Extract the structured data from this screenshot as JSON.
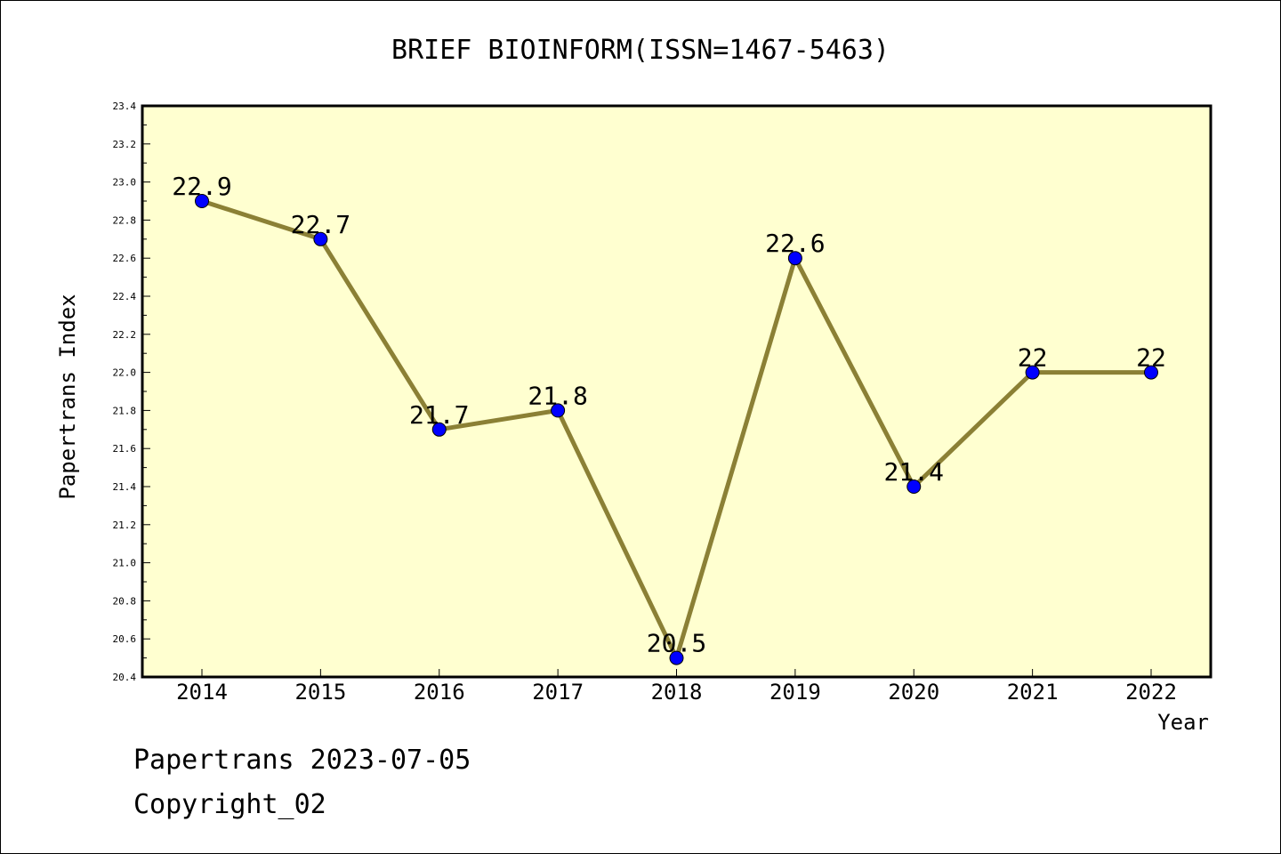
{
  "chart_data": {
    "type": "line",
    "title": "BRIEF BIOINFORM(ISSN=1467-5463)",
    "xlabel": "Year",
    "ylabel": "Papertrans Index",
    "categories": [
      "2014",
      "2015",
      "2016",
      "2017",
      "2018",
      "2019",
      "2020",
      "2021",
      "2022"
    ],
    "values": [
      22.9,
      22.7,
      21.7,
      21.8,
      20.5,
      22.6,
      21.4,
      22.0,
      22.0
    ],
    "data_labels": [
      "22.9",
      "22.7",
      "21.7",
      "21.8",
      "20.5",
      "22.6",
      "21.4",
      "22",
      "22"
    ],
    "ylim": [
      20.4,
      23.4
    ],
    "yticks": [
      "20.4",
      "20.6",
      "20.8",
      "21.0",
      "21.2",
      "21.4",
      "21.6",
      "21.8",
      "22.0",
      "22.2",
      "22.4",
      "22.6",
      "22.8",
      "23.0",
      "23.2",
      "23.4"
    ],
    "grid": false,
    "colors": {
      "plot_background": "#ffffd0",
      "line": "#8b8035",
      "marker": "#0000ff"
    }
  },
  "footer": {
    "line1": "Papertrans 2023-07-05",
    "line2": "Copyright_02"
  }
}
